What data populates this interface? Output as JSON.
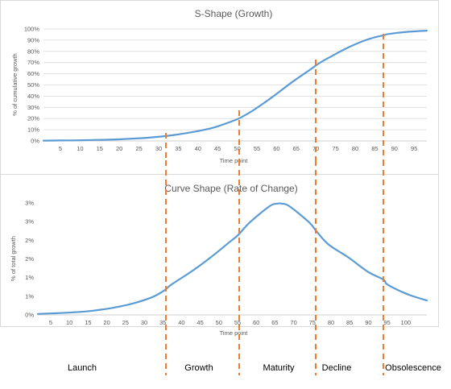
{
  "colors": {
    "line": "#5b9bd5",
    "grid": "#d9d9d9",
    "axis": "#bfbfbf",
    "divider": "#ed7d31",
    "border": "#d9d9d9"
  },
  "chart_data": [
    {
      "type": "line",
      "title": "S-Shape (Growth)",
      "xlabel": "Time point",
      "ylabel": "% of cumulative growth",
      "xlim": [
        1,
        100
      ],
      "ylim": [
        0,
        100
      ],
      "grid": true,
      "x_ticks": [
        "5",
        "10",
        "15",
        "20",
        "25",
        "30",
        "35",
        "40",
        "45",
        "50",
        "55",
        "60",
        "65",
        "70",
        "75",
        "80",
        "85",
        "90",
        "95"
      ],
      "y_ticks": [
        "0%",
        "10%",
        "20%",
        "30%",
        "40%",
        "50%",
        "60%",
        "70%",
        "80%",
        "90%",
        "100%"
      ],
      "series": [
        {
          "x": [
            1,
            5,
            10,
            15,
            20,
            25,
            30,
            33,
            35,
            40,
            45,
            50,
            52,
            55,
            60,
            65,
            70,
            72,
            75,
            80,
            85,
            89,
            90,
            95,
            100
          ],
          "values": [
            0.3,
            0.4,
            0.6,
            0.9,
            1.4,
            2.2,
            3.5,
            4.6,
            5.5,
            8.2,
            12,
            18,
            21,
            27,
            39,
            52,
            64,
            69,
            75,
            84,
            91,
            94.5,
            95.5,
            97.5,
            98.5
          ]
        }
      ]
    },
    {
      "type": "line",
      "title": "Curve Shape (Rate of Change)",
      "xlabel": "Time point",
      "ylabel": "% of total growth",
      "xlim": [
        1,
        100
      ],
      "ylim": [
        0,
        3.5
      ],
      "grid": false,
      "x_ticks": [
        "5",
        "10",
        "15",
        "20",
        "25",
        "30",
        "35",
        "40",
        "45",
        "50",
        "55",
        "60",
        "65",
        "70",
        "75",
        "80",
        "85",
        "90",
        "95",
        "100"
      ],
      "y_ticks": [
        "0%",
        "1%",
        "1%",
        "2%",
        "2%",
        "3%",
        "3%"
      ],
      "series": [
        {
          "x": [
            1,
            5,
            10,
            15,
            20,
            25,
            30,
            33,
            35,
            40,
            45,
            50,
            52,
            55,
            60,
            62,
            63,
            65,
            70,
            72,
            75,
            80,
            85,
            89,
            90,
            95,
            100
          ],
          "values": [
            0.03,
            0.05,
            0.08,
            0.13,
            0.22,
            0.35,
            0.55,
            0.75,
            0.95,
            1.35,
            1.8,
            2.3,
            2.5,
            2.9,
            3.4,
            3.48,
            3.48,
            3.4,
            2.9,
            2.6,
            2.2,
            1.8,
            1.35,
            1.1,
            0.95,
            0.65,
            0.45
          ]
        }
      ]
    }
  ],
  "dividers": [
    33,
    52,
    72,
    89
  ],
  "stages": [
    {
      "label": "Launch"
    },
    {
      "label": "Growth"
    },
    {
      "label": "Maturity"
    },
    {
      "label": "Decline"
    },
    {
      "label": "Obsolescence"
    }
  ]
}
